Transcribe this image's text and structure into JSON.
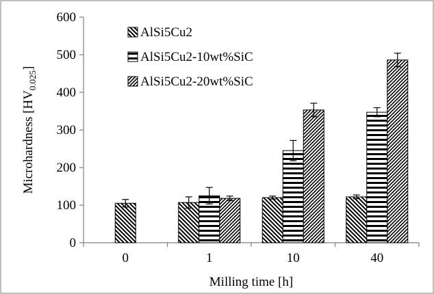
{
  "chart_data": {
    "type": "bar",
    "xlabel": "Milling time [h]",
    "ylabel_main": "Microhardness [HV",
    "ylabel_sub": "0.025",
    "ylabel_close": "]",
    "ylim": [
      0,
      600
    ],
    "yticks": [
      0,
      100,
      200,
      300,
      400,
      500,
      600
    ],
    "categories": [
      "0",
      "1",
      "10",
      "40"
    ],
    "grid": false,
    "legend_position": "top-left",
    "series": [
      {
        "name": "AlSi5Cu2",
        "pattern": "diagonal-backslash",
        "values": [
          105,
          107,
          null,
          null
        ],
        "values_full": [
          105,
          107,
          120,
          122
        ],
        "errors": [
          10,
          15,
          4,
          5
        ]
      },
      {
        "name": "AlSi5Cu2-10wt%SiC",
        "pattern": "horizontal-lines",
        "values": [
          null,
          125,
          245,
          347
        ],
        "errors": [
          null,
          22,
          27,
          12
        ]
      },
      {
        "name": "AlSi5Cu2-20wt%SiC",
        "pattern": "diagonal-slash",
        "values": [
          null,
          118,
          353,
          486
        ],
        "errors": [
          null,
          6,
          18,
          18
        ]
      }
    ]
  }
}
